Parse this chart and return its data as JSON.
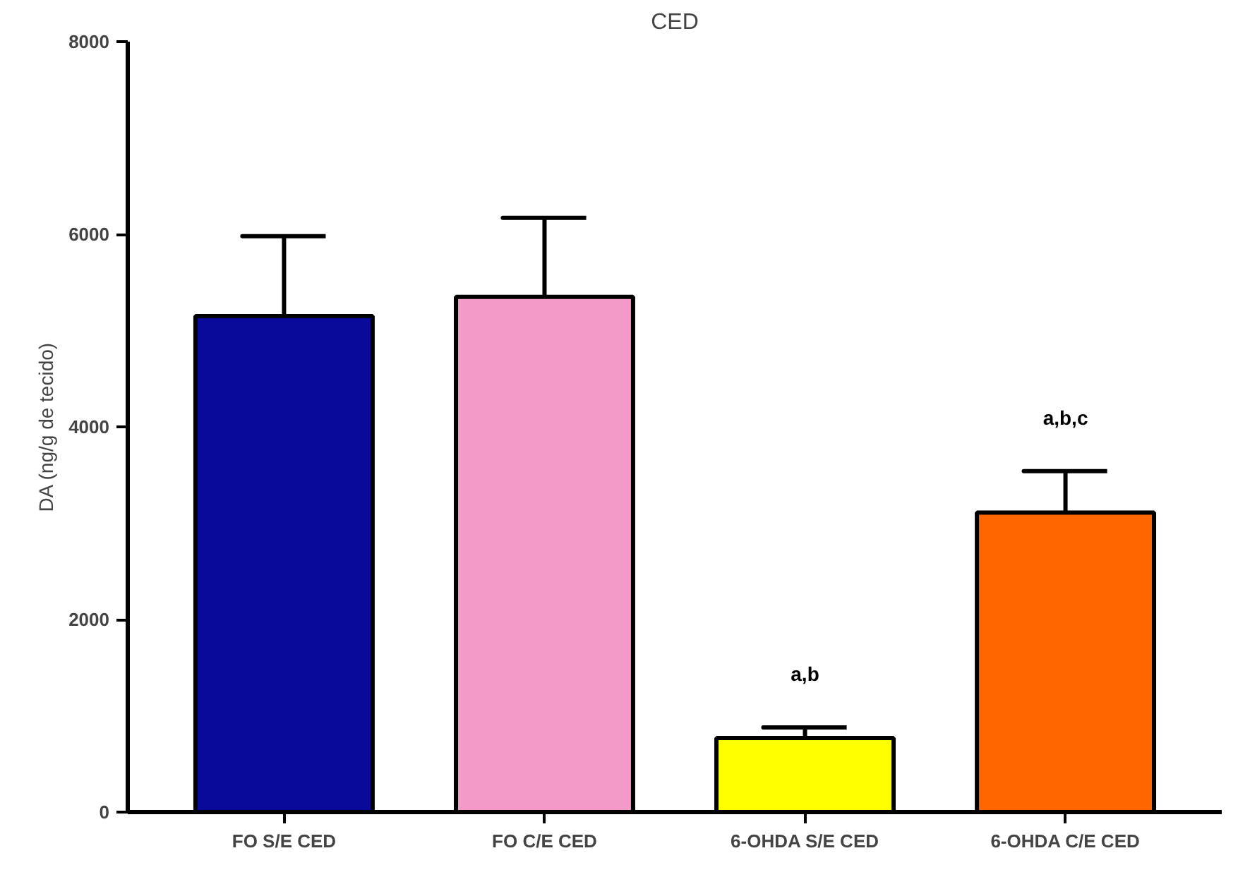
{
  "chart_data": {
    "type": "bar",
    "title": "CED",
    "ylabel": "DA (ng/g de tecido)",
    "categories": [
      "FO S/E CED",
      "FO C/E CED",
      "6-OHDA S/E CED",
      "6-OHDA C/E CED"
    ],
    "values": [
      5150,
      5350,
      770,
      3110
    ],
    "colors": [
      "#0a0a9a",
      "#f49ac8",
      "#ffff00",
      "#ff6600"
    ],
    "errors": [
      [
        5150,
        5980
      ],
      [
        5350,
        6170
      ],
      [
        770,
        880
      ],
      [
        3110,
        3540
      ]
    ],
    "ylim": [
      0,
      8000
    ],
    "yticks": [
      0,
      2000,
      4000,
      6000,
      8000
    ],
    "grid": false,
    "annotations": [
      {
        "text": "a,b",
        "x": "6-OHDA S/E CED",
        "y": 880
      },
      {
        "text": "a,b,c",
        "x": "6-OHDA C/E CED",
        "y": 3540
      }
    ]
  }
}
